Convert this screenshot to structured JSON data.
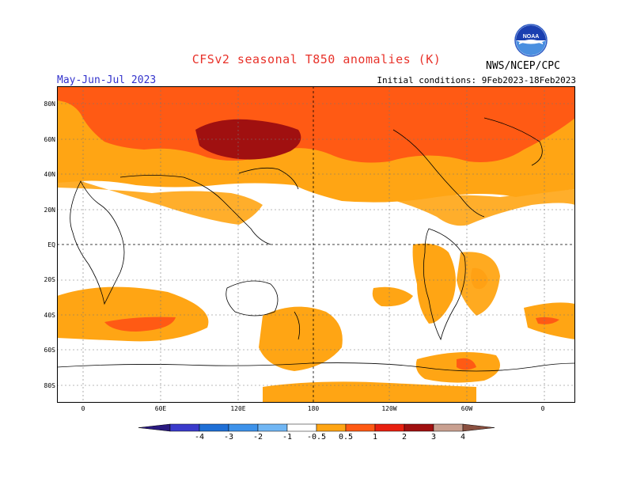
{
  "title": "CFSv2 seasonal T850 anomalies (K)",
  "period": "May-Jun-Jul 2023",
  "initial_conditions": "Initial conditions: 9Feb2023-18Feb2023",
  "organization": "NWS/NCEP/CPC",
  "logo_text": "NOAA",
  "lat_labels": [
    "80N",
    "60N",
    "40N",
    "20N",
    "EQ",
    "20S",
    "40S",
    "60S",
    "80S"
  ],
  "lon_labels": [
    "0",
    "60E",
    "120E",
    "180",
    "120W",
    "60W",
    "0"
  ],
  "colorbar": {
    "ticks": [
      "-4",
      "-3",
      "-2",
      "-1",
      "-0.5",
      "0.5",
      "1",
      "2",
      "3",
      "4"
    ],
    "colors": [
      "#2a1a80",
      "#3a3acb",
      "#1f6fd6",
      "#3d92ea",
      "#70b6f4",
      "#ffffff",
      "#ffa514",
      "#ff5a14",
      "#e82010",
      "#a01010",
      "#c9a090",
      "#8a5040"
    ]
  }
}
